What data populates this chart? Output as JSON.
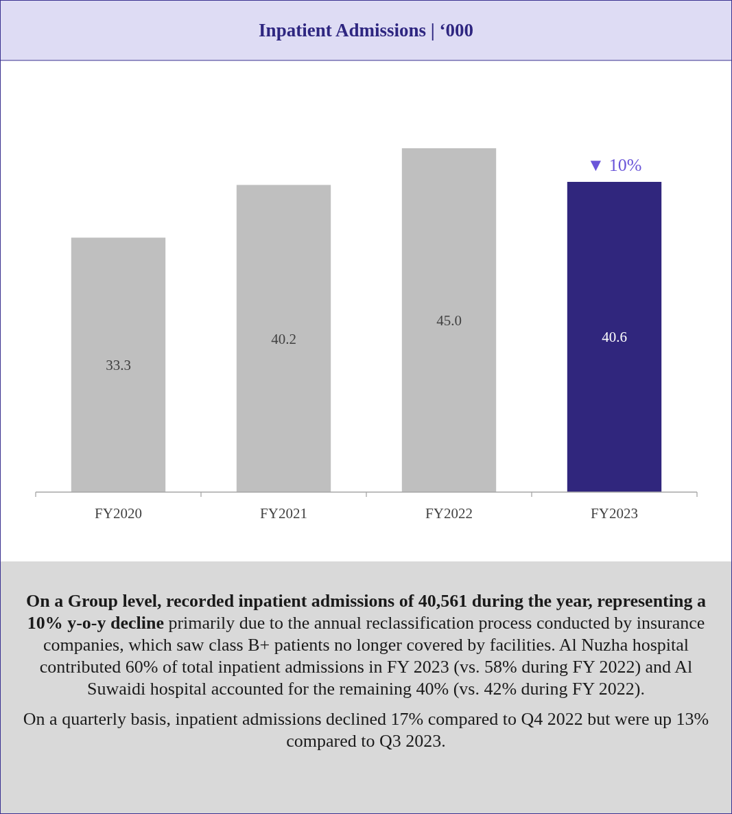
{
  "chart_data": {
    "type": "bar",
    "title": "Inpatient Admissions | ‘000",
    "categories": [
      "FY2020",
      "FY2021",
      "FY2022",
      "FY2023"
    ],
    "values": [
      33.3,
      40.2,
      45.0,
      40.6
    ],
    "colors": [
      "#bfbfbf",
      "#bfbfbf",
      "#bfbfbf",
      "#30267d"
    ],
    "value_labels": [
      "33.3",
      "40.2",
      "45.0",
      "40.6"
    ],
    "annotations": [
      {
        "text": "▼ 10%",
        "x": "FY2023",
        "y": 40.6
      },
      "On a Group level, recorded inpatient admissions of 40,561 during the year, representing a 10% y-o-y decline",
      " primarily due to the annual reclassification process conducted by insurance companies, which saw class B+ patients no longer covered by facilities. Al Nuzha hospital contributed 60% of total inpatient admissions in FY 2023 (vs. 58% during FY 2022) and Al Suwaidi hospital accounted for the remaining 40% (vs. 42% during FY 2022).",
      "On a quarterly basis, inpatient admissions declined 17% compared to Q4 2022  but were up 13% compared to Q3 2023."
    ]
  }
}
